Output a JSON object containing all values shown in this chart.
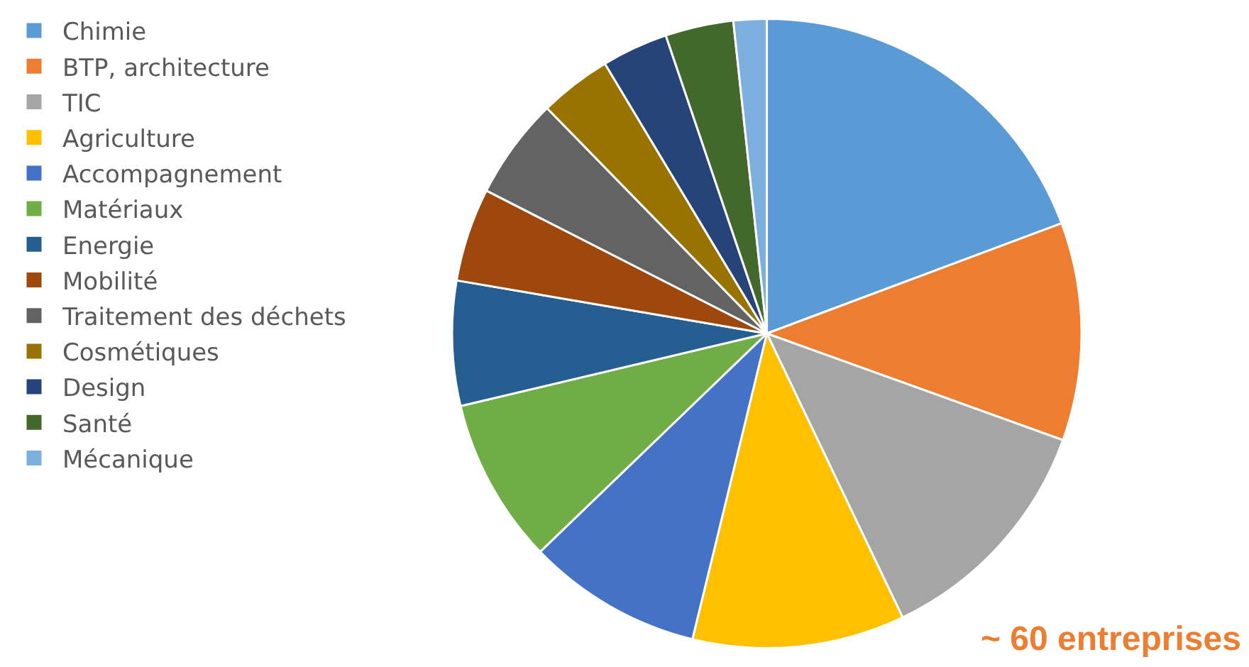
{
  "chart_data": {
    "type": "pie",
    "categories": [
      "Chimie",
      "BTP, architecture",
      "TIC",
      "Agriculture",
      "Accompagnement",
      "Matériaux",
      "Energie",
      "Mobilité",
      "Traitement des déchets",
      "Cosmétiques",
      "Design",
      "Santé",
      "Mécanique"
    ],
    "values": [
      19.3,
      11.2,
      12.4,
      10.9,
      9.0,
      8.5,
      6.4,
      4.8,
      5.2,
      3.7,
      3.4,
      3.5,
      1.7
    ],
    "colors": [
      "#5b9bd5",
      "#ed7d31",
      "#a5a5a5",
      "#ffc000",
      "#4472c4",
      "#70ad47",
      "#255e91",
      "#9e480e",
      "#636363",
      "#997300",
      "#264478",
      "#43682b",
      "#7cafdd"
    ],
    "legend": "left",
    "annotations": [
      "~ 60 entreprises"
    ]
  }
}
